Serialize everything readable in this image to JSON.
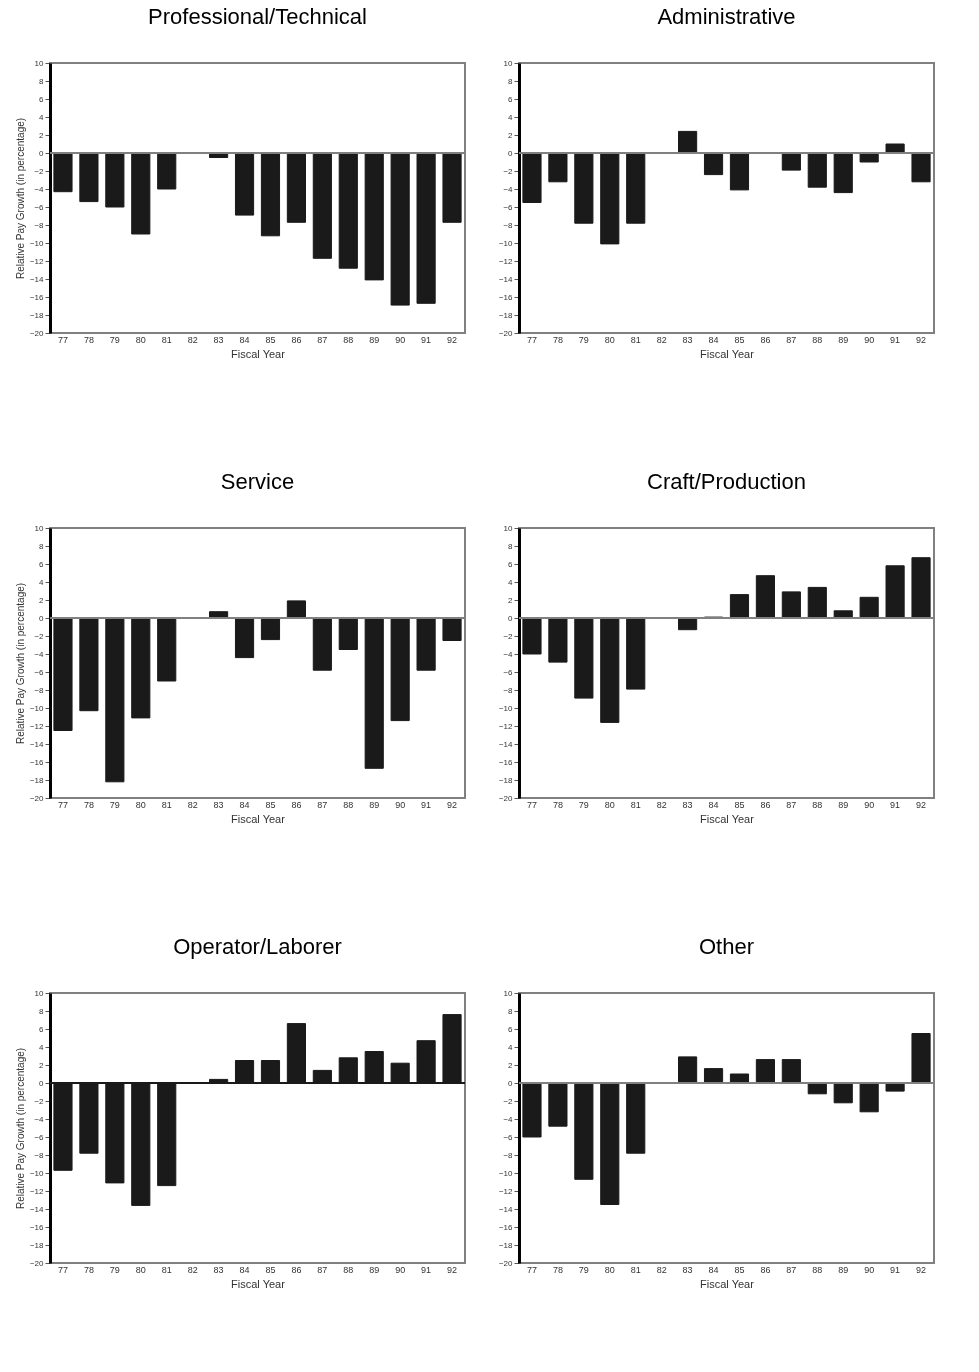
{
  "chart_data": [
    {
      "type": "bar",
      "title": "Professional/Technical",
      "xlabel": "Fiscal Year",
      "ylabel": "Relative Pay Growth (in percentage)",
      "categories": [
        "77",
        "78",
        "79",
        "80",
        "81",
        "82",
        "83",
        "84",
        "85",
        "86",
        "87",
        "88",
        "89",
        "90",
        "91",
        "92"
      ],
      "values": [
        -4.3,
        -5.4,
        -6.0,
        -9.0,
        -4.0,
        0,
        -0.5,
        -6.9,
        -9.2,
        -7.7,
        -11.7,
        -12.8,
        -14.1,
        -16.9,
        -16.7,
        -7.7
      ],
      "color": "#1a1a1a",
      "ylim": [
        -20,
        10
      ],
      "yticks": [
        -20,
        -18,
        -16,
        -14,
        -12,
        -10,
        -8,
        -6,
        -4,
        -2,
        0,
        2,
        4,
        6,
        8,
        10
      ],
      "grid": false,
      "ref_lines": [
        {
          "axis": "y",
          "value": 0,
          "color": "#808080"
        }
      ]
    },
    {
      "type": "bar",
      "title": "Administrative",
      "xlabel": "Fiscal Year",
      "categories": [
        "77",
        "78",
        "79",
        "80",
        "81",
        "82",
        "83",
        "84",
        "85",
        "86",
        "87",
        "88",
        "89",
        "90",
        "91",
        "92"
      ],
      "values": [
        -5.5,
        -3.2,
        -7.8,
        -10.1,
        -7.8,
        0,
        2.4,
        -2.4,
        -4.1,
        0,
        -1.9,
        -3.8,
        -4.4,
        -1.0,
        1.0,
        -3.2
      ],
      "color": "#1a1a1a",
      "ylim": [
        -20,
        10
      ],
      "yticks": [
        -20,
        -18,
        -16,
        -14,
        -12,
        -10,
        -8,
        -6,
        -4,
        -2,
        0,
        2,
        4,
        6,
        8,
        10
      ],
      "grid": false,
      "ref_lines": [
        {
          "axis": "y",
          "value": 0,
          "color": "#808080"
        }
      ]
    },
    {
      "type": "bar",
      "title": "Service",
      "xlabel": "Fiscal Year",
      "ylabel": "Relative Pay Growth (in percentage)",
      "categories": [
        "77",
        "78",
        "79",
        "80",
        "81",
        "82",
        "83",
        "84",
        "85",
        "86",
        "87",
        "88",
        "89",
        "90",
        "91",
        "92"
      ],
      "values": [
        -12.5,
        -10.3,
        -18.2,
        -11.1,
        -7.0,
        0,
        0.7,
        -4.4,
        -2.4,
        1.9,
        -5.8,
        -3.5,
        -16.7,
        -11.4,
        -5.8,
        -2.5
      ],
      "color": "#1a1a1a",
      "ylim": [
        -20,
        10
      ],
      "yticks": [
        -20,
        -18,
        -16,
        -14,
        -12,
        -10,
        -8,
        -6,
        -4,
        -2,
        0,
        2,
        4,
        6,
        8,
        10
      ],
      "grid": false,
      "ref_lines": [
        {
          "axis": "y",
          "value": 0,
          "color": "#808080"
        }
      ]
    },
    {
      "type": "bar",
      "title": "Craft/Production",
      "xlabel": "Fiscal Year",
      "categories": [
        "77",
        "78",
        "79",
        "80",
        "81",
        "82",
        "83",
        "84",
        "85",
        "86",
        "87",
        "88",
        "89",
        "90",
        "91",
        "92"
      ],
      "values": [
        -4.0,
        -4.9,
        -8.9,
        -11.6,
        -7.9,
        0,
        -1.3,
        0.1,
        2.6,
        4.7,
        2.9,
        3.4,
        0.8,
        2.3,
        5.8,
        6.7
      ],
      "color": "#1a1a1a",
      "ylim": [
        -20,
        10
      ],
      "yticks": [
        -20,
        -18,
        -16,
        -14,
        -12,
        -10,
        -8,
        -6,
        -4,
        -2,
        0,
        2,
        4,
        6,
        8,
        10
      ],
      "grid": false,
      "ref_lines": [
        {
          "axis": "y",
          "value": 0,
          "color": "#808080"
        }
      ]
    },
    {
      "type": "bar",
      "title": "Operator/Laborer",
      "xlabel": "Fiscal Year",
      "ylabel": "Relative Pay Growth (in percentage)",
      "categories": [
        "77",
        "78",
        "79",
        "80",
        "81",
        "82",
        "83",
        "84",
        "85",
        "86",
        "87",
        "88",
        "89",
        "90",
        "91",
        "92"
      ],
      "values": [
        -9.7,
        -7.8,
        -11.1,
        -13.6,
        -11.4,
        0,
        0.4,
        2.5,
        2.5,
        6.6,
        1.4,
        2.8,
        3.5,
        2.2,
        4.7,
        7.6
      ],
      "color": "#1a1a1a",
      "ylim": [
        -20,
        10
      ],
      "yticks": [
        -20,
        -18,
        -16,
        -14,
        -12,
        -10,
        -8,
        -6,
        -4,
        -2,
        0,
        2,
        4,
        6,
        8,
        10
      ],
      "grid": false,
      "ref_lines": [
        {
          "axis": "y",
          "value": 0,
          "color": "#1a1a1a"
        }
      ]
    },
    {
      "type": "bar",
      "title": "Other",
      "xlabel": "Fiscal Year",
      "categories": [
        "77",
        "78",
        "79",
        "80",
        "81",
        "82",
        "83",
        "84",
        "85",
        "86",
        "87",
        "88",
        "89",
        "90",
        "91",
        "92"
      ],
      "values": [
        -6.0,
        -4.8,
        -10.7,
        -13.5,
        -7.8,
        0,
        2.9,
        1.6,
        1.0,
        2.6,
        2.6,
        -1.2,
        -2.2,
        -3.2,
        -0.9,
        5.5
      ],
      "color": "#1a1a1a",
      "ylim": [
        -20,
        10
      ],
      "yticks": [
        -20,
        -18,
        -16,
        -14,
        -12,
        -10,
        -8,
        -6,
        -4,
        -2,
        0,
        2,
        4,
        6,
        8,
        10
      ],
      "grid": false,
      "ref_lines": [
        {
          "axis": "y",
          "value": 0,
          "color": "#808080"
        }
      ]
    }
  ]
}
